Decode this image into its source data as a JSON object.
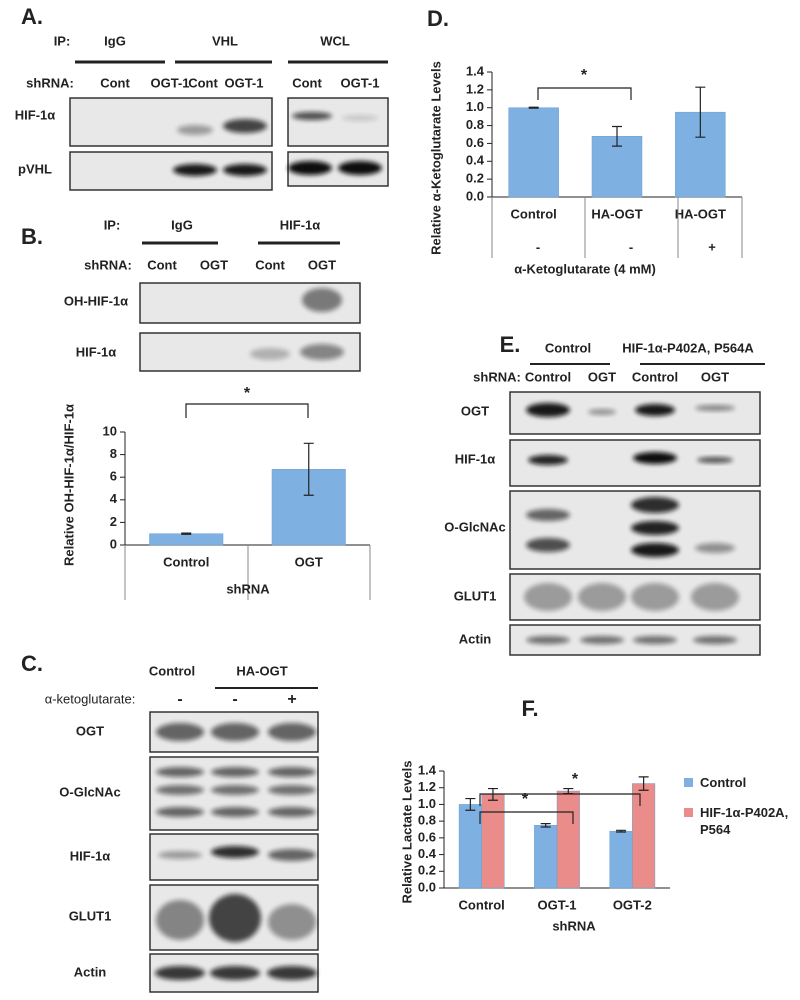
{
  "panels": {
    "a": {
      "letter": "A.",
      "ip_label": "IP:",
      "ip_groups": [
        "IgG",
        "VHL",
        "WCL"
      ],
      "shrna_label": "shRNA:",
      "lanes": [
        "Cont",
        "OGT-1",
        "Cont",
        "OGT-1",
        "Cont",
        "OGT-1"
      ],
      "rows": [
        "HIF-1α",
        "pVHL"
      ]
    },
    "b": {
      "letter": "B.",
      "ip_label": "IP:",
      "ip_groups": [
        "IgG",
        "HIF-1α"
      ],
      "shrna_label": "shRNA:",
      "lanes": [
        "Cont",
        "OGT",
        "Cont",
        "OGT"
      ],
      "rows": [
        "OH-HIF-1α",
        "HIF-1α"
      ]
    },
    "c": {
      "letter": "C.",
      "groups": [
        "Control",
        "HA-OGT"
      ],
      "treatment_label": "α-ketoglutarate:",
      "treatment": [
        "-",
        "-",
        "+"
      ],
      "rows": [
        "OGT",
        "O-GlcNAc",
        "HIF-1α",
        "GLUT1",
        "Actin"
      ]
    },
    "e": {
      "letter": "E.",
      "groups": [
        "Control",
        "HIF-1α-P402A, P564A"
      ],
      "shrna_label": "shRNA:",
      "lanes": [
        "Control",
        "OGT",
        "Control",
        "OGT"
      ],
      "rows": [
        "OGT",
        "HIF-1α",
        "O-GlcNAc",
        "GLUT1",
        "Actin"
      ]
    }
  },
  "chart_data": [
    {
      "type": "bar",
      "ylabel": "Relative OH-HIF-1α/HIF-1α",
      "xlabel": "shRNA",
      "categories": [
        "Control",
        "OGT"
      ],
      "values": [
        1.0,
        6.7
      ],
      "errors": [
        0.05,
        2.3
      ],
      "color": "#7fb0e2",
      "ylim": [
        0,
        10
      ],
      "yticks": [
        0,
        2,
        4,
        6,
        8,
        10
      ],
      "annotations": [
        "*"
      ]
    },
    {
      "type": "bar",
      "panel_label": "D.",
      "ylabel": "Relative α-Ketoglutarate Levels",
      "xlabel": "α-Ketoglutarate (4 mM)",
      "categories": [
        "Control",
        "HA-OGT",
        "HA-OGT"
      ],
      "treatment": [
        "-",
        "-",
        "+"
      ],
      "values": [
        1.0,
        0.68,
        0.95
      ],
      "errors": [
        0.005,
        0.11,
        0.28
      ],
      "color": "#7fb0e2",
      "ylim": [
        0,
        1.4
      ],
      "yticks": [
        {
          "value": 0,
          "label": "0.0"
        },
        {
          "value": 0.2,
          "label": "0.2"
        },
        {
          "value": 0.4,
          "label": "0.4"
        },
        {
          "value": 0.6,
          "label": "0.6"
        },
        {
          "value": 0.8,
          "label": "0.8"
        },
        {
          "value": 1.0,
          "label": "1.0"
        },
        {
          "value": 1.2,
          "label": "1.2"
        },
        {
          "value": 1.4,
          "label": "1.4"
        }
      ],
      "annotations": [
        "*"
      ]
    },
    {
      "type": "bar",
      "panel_label": "F.",
      "ylabel": "Relative Lactate Levels",
      "xlabel": "shRNA",
      "categories": [
        "Control",
        "OGT-1",
        "OGT-2"
      ],
      "legend": "right",
      "series": [
        {
          "name": "Control",
          "color": "#7fb0e2",
          "values": [
            1.0,
            0.75,
            0.68
          ],
          "errors": [
            0.07,
            0.02,
            0.01
          ]
        },
        {
          "name": "HIF-1α-P402A, P564",
          "color": "#e98c8a",
          "values": [
            1.12,
            1.16,
            1.25
          ],
          "errors": [
            0.07,
            0.03,
            0.08
          ]
        }
      ],
      "ylim": [
        0,
        1.4
      ],
      "yticks": [
        {
          "value": 0,
          "label": "0.0"
        },
        {
          "value": 0.2,
          "label": "0.2"
        },
        {
          "value": 0.4,
          "label": "0.4"
        },
        {
          "value": 0.6,
          "label": "0.6"
        },
        {
          "value": 0.8,
          "label": "0.8"
        },
        {
          "value": 1.0,
          "label": "1.0"
        },
        {
          "value": 1.2,
          "label": "1.2"
        },
        {
          "value": 1.4,
          "label": "1.4"
        }
      ],
      "annotations": [
        "*",
        "*"
      ]
    }
  ]
}
